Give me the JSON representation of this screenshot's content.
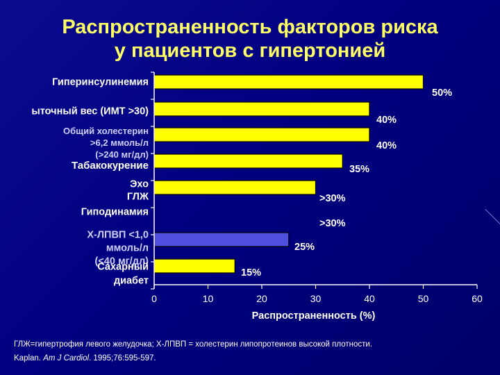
{
  "title": {
    "line1": "Распространенность факторов риска",
    "line2": "у пациентов с гипертонией"
  },
  "chart_data": {
    "type": "bar",
    "orientation": "horizontal",
    "xlabel": "Распространенность (%)",
    "xlim": [
      0,
      60
    ],
    "xticks": [
      0,
      10,
      20,
      30,
      40,
      50,
      60
    ],
    "categories": [
      "Гиперинсулинемия",
      "ыточный вес (ИМТ >30)",
      "Общий холестерин >6,2 ммоль/л (>240 мг/дл)",
      "Табакокурение",
      "Эхо ГЛЖ",
      "Гиподинамия",
      "Х-ЛПВП <1,0 ммоль/л (<40 мг/дл)",
      "Сахарный диабет"
    ],
    "category_lines": [
      [
        "Гиперинсулинемия"
      ],
      [
        "ыточный вес (ИМТ >30)"
      ],
      [
        "Общий холестерин",
        ">6,2 ммоль/л",
        "(>240 мг/дл)"
      ],
      [
        "Табакокурение"
      ],
      [
        "Эхо",
        "ГЛЖ"
      ],
      [
        "Гиподинамия"
      ],
      [
        "Х-ЛПВП <1,0",
        "ммоль/л",
        "(<40 мг/дл)"
      ],
      [
        "Сахарный",
        "диабет"
      ]
    ],
    "values": [
      50,
      40,
      40,
      35,
      30,
      30,
      25,
      15
    ],
    "bar_present": [
      true,
      true,
      true,
      true,
      true,
      false,
      true,
      true
    ],
    "data_labels": [
      "50%",
      "40%",
      "40%",
      "35%",
      ">30%",
      ">30%",
      "25%",
      "15%"
    ],
    "colors": {
      "bar_default": "#ffff00",
      "bar_highlight": "#4f4fe0",
      "text_main": "#ffffff",
      "text_alt": "#cfcfff",
      "axis": "#ffffff"
    },
    "bar_color_role": [
      "default",
      "default",
      "default",
      "default",
      "default",
      "default",
      "highlight",
      "default"
    ]
  },
  "footnote": {
    "line1": "ГЛЖ=гипертрофия левого желудочка; Х-ЛПВП = холестерин липопротеинов высокой плотности.",
    "line2_author": "Kaplan.",
    "line2_journal": "Am J Cardiol",
    "line2_rest": ". 1995;76:595-597."
  }
}
